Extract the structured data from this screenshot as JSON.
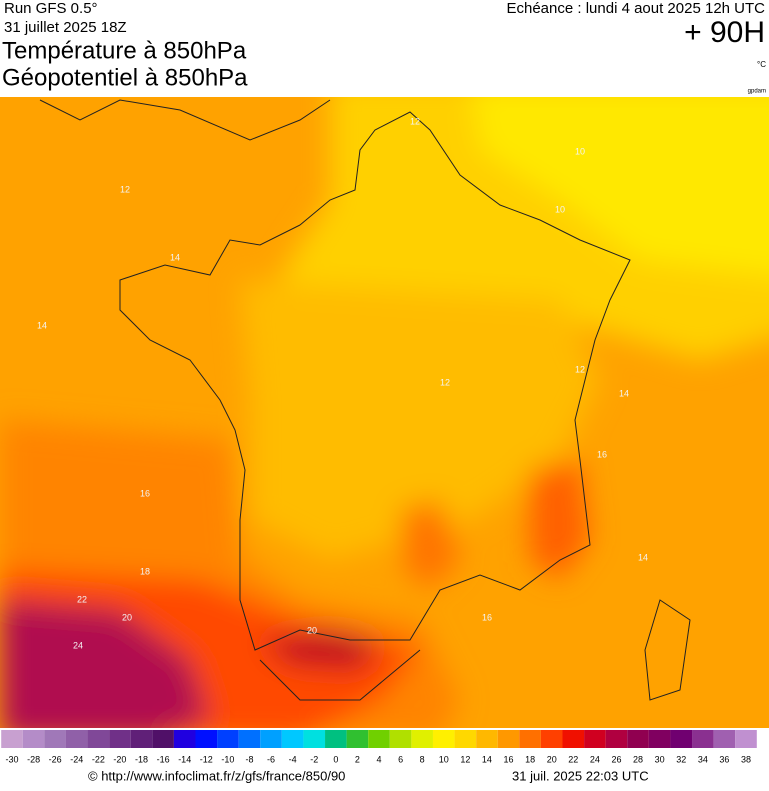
{
  "header": {
    "run": "Run GFS 0.5°",
    "run_date": "31 juillet 2025 18Z",
    "title_1": "Température à 850hPa",
    "title_2": "Géopotentiel à 850hPa",
    "forecast": "Echéance : lundi 4 aout 2025 12h UTC",
    "lead": "+ 90H",
    "unit": "°C",
    "credit": "gpdam"
  },
  "map": {
    "contour_labels": [
      "10",
      "10",
      "12",
      "12",
      "12",
      "12",
      "14",
      "14",
      "14",
      "14",
      "16",
      "16",
      "16",
      "18",
      "22",
      "20",
      "20",
      "24"
    ]
  },
  "legend": {
    "ticks": [
      -30,
      -28,
      -26,
      -24,
      -22,
      -20,
      -18,
      -16,
      -14,
      -12,
      -10,
      -8,
      -6,
      -4,
      -2,
      0,
      2,
      4,
      6,
      8,
      10,
      12,
      14,
      16,
      18,
      20,
      22,
      24,
      26,
      28,
      30,
      32,
      34,
      36,
      38
    ],
    "colors": [
      "#c8a0d0",
      "#b48cc8",
      "#a078b8",
      "#9060a8",
      "#804898",
      "#703088",
      "#602078",
      "#501068",
      "#2000e0",
      "#0010ff",
      "#0040ff",
      "#0070ff",
      "#00a0ff",
      "#00c8ff",
      "#00e0e0",
      "#00c080",
      "#30c030",
      "#70d000",
      "#b0e000",
      "#e0f000",
      "#fff000",
      "#ffd800",
      "#ffb800",
      "#ff9800",
      "#ff7000",
      "#ff4000",
      "#f01000",
      "#d00020",
      "#b00040",
      "#900050",
      "#800060",
      "#700070",
      "#8a3090",
      "#a060b0",
      "#c090d0"
    ]
  },
  "footer": {
    "url": "© http://www.infoclimat.fr/z/gfs/france/850/90",
    "timestamp": "31 juil. 2025 22:03 UTC"
  }
}
